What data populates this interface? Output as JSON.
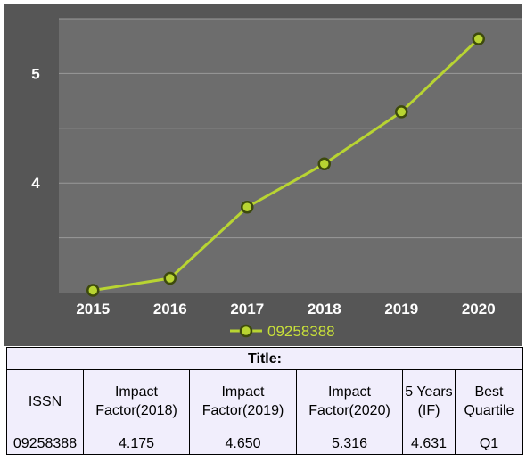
{
  "chart_data": {
    "type": "line",
    "x": [
      "2015",
      "2016",
      "2017",
      "2018",
      "2019",
      "2020"
    ],
    "series": [
      {
        "name": "09258388",
        "values": [
          3.02,
          3.13,
          3.78,
          4.175,
          4.65,
          5.316
        ],
        "color": "#b8d432"
      }
    ],
    "yticks": [
      4,
      5
    ],
    "ylim": [
      3,
      5.5
    ],
    "grid": true,
    "legend_position": "bottom"
  },
  "table": {
    "title_label": "Title:",
    "headers": [
      "ISSN",
      "Impact Factor(2018)",
      "Impact Factor(2019)",
      "Impact Factor(2020)",
      "5 Years (IF)",
      "Best Quartile"
    ],
    "row": [
      "09258388",
      "4.175",
      "4.650",
      "5.316",
      "4.631",
      "Q1"
    ]
  }
}
